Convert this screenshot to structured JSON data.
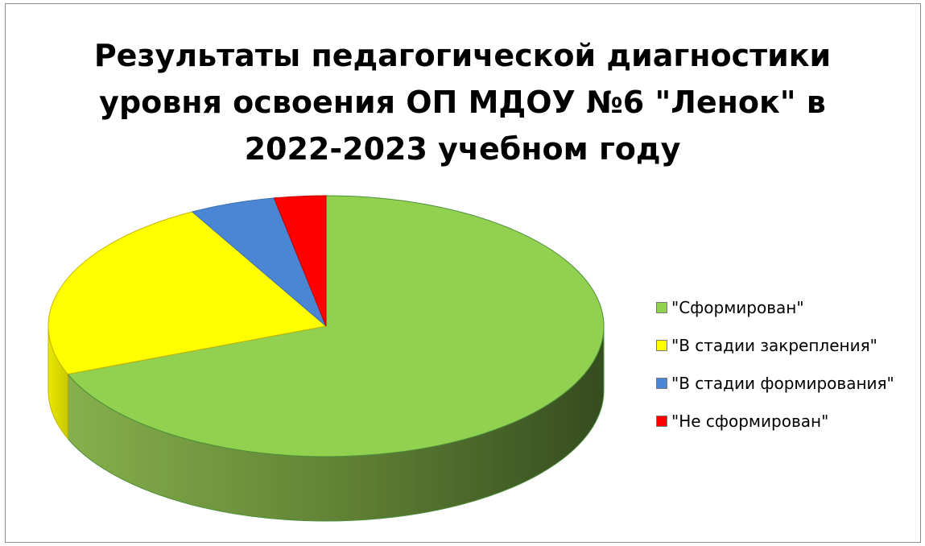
{
  "chart_data": {
    "type": "pie",
    "title_lines": [
      "Результаты педагогической диагностики",
      "уровня освоения ОП  МДОУ №6 \"Ленок\" в",
      "2022-2023 учебном году"
    ],
    "three_d": true,
    "legend_position": "right",
    "categories": [
      "\"Сформирован\"",
      "\"В стадии закрепления\"",
      "\"В стадии формирования\"",
      "\"Не сформирован\""
    ],
    "values": [
      69,
      23,
      5,
      3
    ],
    "colors": [
      "#92d050",
      "#ffff00",
      "#4a86d4",
      "#ff0000"
    ]
  }
}
